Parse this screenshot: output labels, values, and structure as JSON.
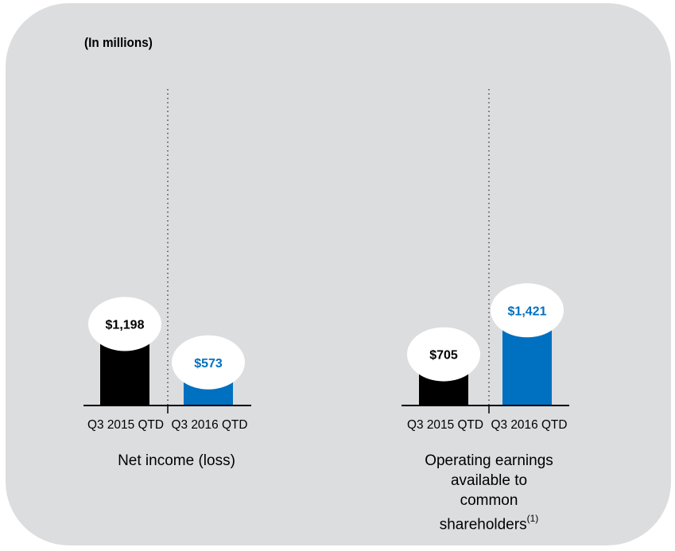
{
  "units_label": "(In millions)",
  "colors": {
    "prior_year": "#000000",
    "current_year": "#0070c0",
    "background": "#dcdddf"
  },
  "chart_data": [
    {
      "type": "bar",
      "title": "Net income (loss)",
      "categories": [
        "Q3 2015 QTD",
        "Q3 2016 QTD"
      ],
      "values": [
        1198,
        573
      ],
      "data_labels": [
        "$1,198",
        "$573"
      ],
      "value_units": "millions"
    },
    {
      "type": "bar",
      "title": "Operating earnings available to common shareholders",
      "title_lines": [
        "Operating earnings",
        "available to",
        "common",
        "shareholders"
      ],
      "title_footnote": "(1)",
      "categories": [
        "Q3 2015 QTD",
        "Q3 2016 QTD"
      ],
      "values": [
        705,
        1421
      ],
      "data_labels": [
        "$705",
        "$1,421"
      ],
      "value_units": "millions"
    }
  ]
}
